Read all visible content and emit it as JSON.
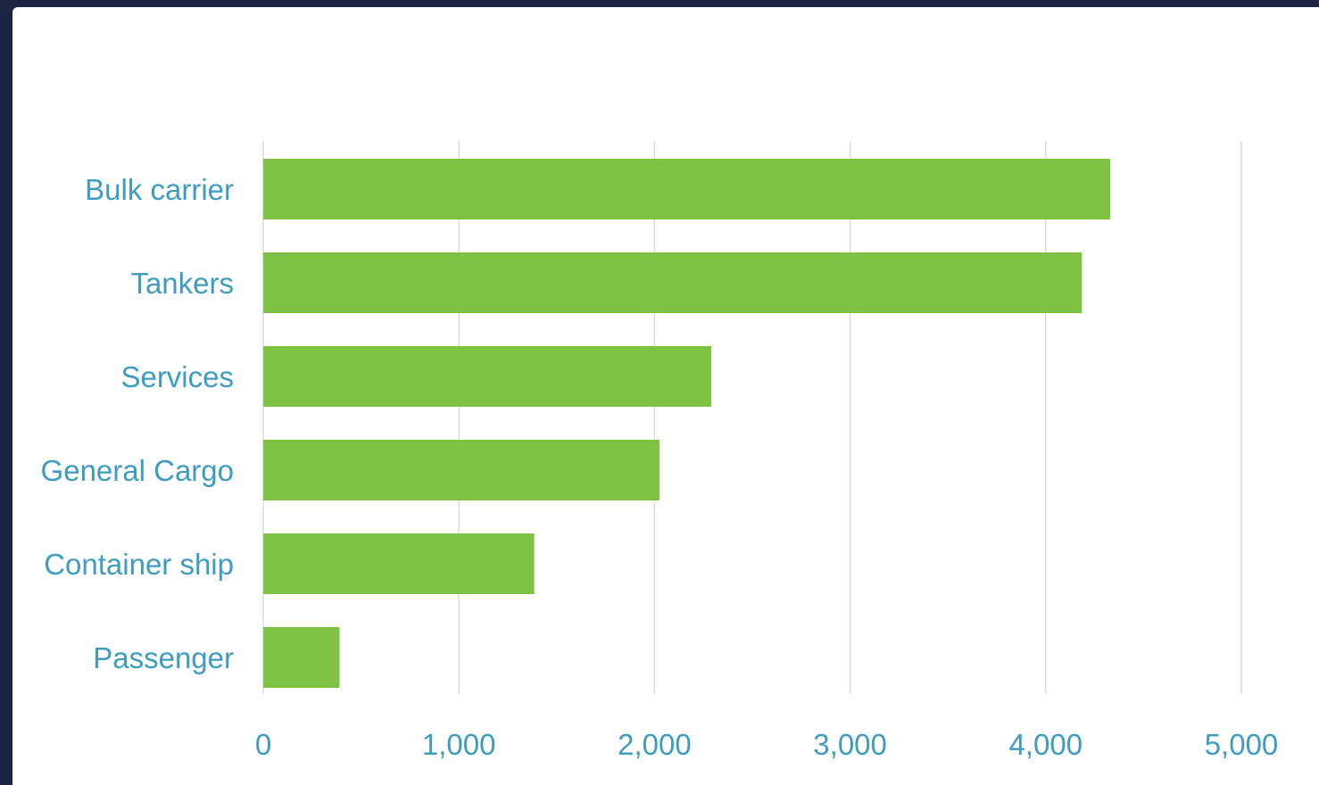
{
  "colors": {
    "background": "#1d2341",
    "panel": "#ffffff",
    "bar": "#7dc242",
    "label": "#3e9cc0",
    "grid": "#dcdcdc"
  },
  "chart_data": {
    "type": "bar",
    "orientation": "horizontal",
    "title": "",
    "xlabel": "",
    "ylabel": "",
    "categories": [
      "Bulk carrier",
      "Tankers",
      "Services",
      "General Cargo",
      "Container ship",
      "Passenger"
    ],
    "values": [
      4330,
      4185,
      2290,
      2025,
      1385,
      390
    ],
    "xlim": [
      0,
      5000
    ],
    "xticks": [
      0,
      1000,
      2000,
      3000,
      4000,
      5000
    ],
    "xtick_labels": [
      "0",
      "1,000",
      "2,000",
      "3,000",
      "4,000",
      "5,000"
    ],
    "grid": "vertical",
    "legend": "none"
  }
}
